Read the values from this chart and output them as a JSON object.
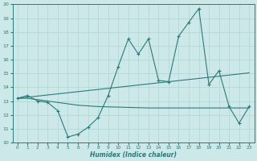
{
  "x": [
    0,
    1,
    2,
    3,
    4,
    5,
    6,
    7,
    8,
    9,
    10,
    11,
    12,
    13,
    14,
    15,
    16,
    17,
    18,
    19,
    20,
    21,
    22,
    23
  ],
  "y_main": [
    13.2,
    13.4,
    13.0,
    12.9,
    12.3,
    10.4,
    10.6,
    11.1,
    11.8,
    13.4,
    15.5,
    17.5,
    16.4,
    17.5,
    14.5,
    14.4,
    17.7,
    18.7,
    19.7,
    14.2,
    15.2,
    12.6,
    11.4,
    12.6
  ],
  "y_upper": [
    13.2,
    13.28,
    13.36,
    13.44,
    13.52,
    13.6,
    13.68,
    13.76,
    13.84,
    13.92,
    14.0,
    14.08,
    14.16,
    14.24,
    14.32,
    14.4,
    14.48,
    14.56,
    14.64,
    14.72,
    14.8,
    14.88,
    14.96,
    15.04
  ],
  "y_lower": [
    13.2,
    13.2,
    13.1,
    13.0,
    12.9,
    12.8,
    12.7,
    12.65,
    12.6,
    12.58,
    12.56,
    12.54,
    12.52,
    12.5,
    12.5,
    12.5,
    12.5,
    12.5,
    12.5,
    12.5,
    12.5,
    12.5,
    12.5,
    12.5
  ],
  "background_color": "#cce8e8",
  "grid_color": "#b0d4d4",
  "line_color": "#2d7a7a",
  "xlabel": "Humidex (Indice chaleur)",
  "ylim": [
    10,
    20
  ],
  "xlim": [
    -0.5,
    23.5
  ],
  "yticks": [
    10,
    11,
    12,
    13,
    14,
    15,
    16,
    17,
    18,
    19,
    20
  ],
  "xticks": [
    0,
    1,
    2,
    3,
    4,
    5,
    6,
    7,
    8,
    9,
    10,
    11,
    12,
    13,
    14,
    15,
    16,
    17,
    18,
    19,
    20,
    21,
    22,
    23
  ]
}
